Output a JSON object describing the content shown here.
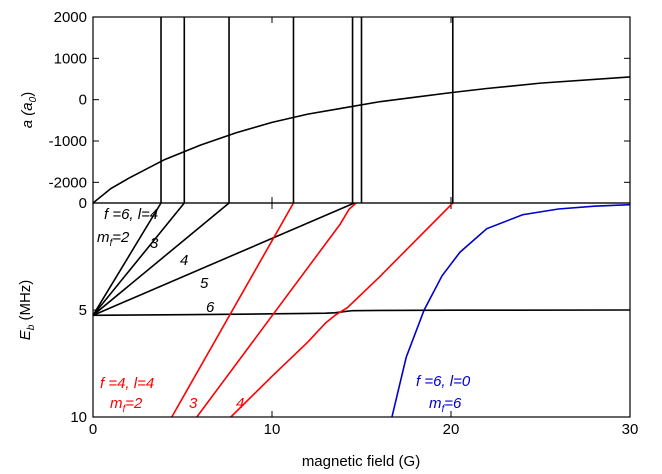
{
  "chart_data": [
    {
      "type": "line",
      "ylabel": [
        "a (a",
        "0",
        ")"
      ],
      "xlim": [
        0,
        30
      ],
      "ylim": [
        -2500,
        2000
      ],
      "yticks": [
        2000,
        1000,
        0,
        -1000,
        -2000
      ],
      "resonances": [
        3.8,
        5.1,
        7.6,
        11.2,
        14.5,
        15.0,
        20.1
      ],
      "series": [
        {
          "color": "#000000",
          "x": [
            0,
            1,
            2,
            4,
            6,
            8,
            10,
            12,
            14,
            16,
            18,
            20,
            22,
            25,
            30
          ],
          "values": [
            -2500,
            -2150,
            -1900,
            -1450,
            -1100,
            -800,
            -550,
            -350,
            -200,
            -50,
            60,
            170,
            270,
            400,
            550
          ]
        }
      ]
    },
    {
      "type": "line",
      "ylabel": [
        "E",
        "b",
        " (MHz)"
      ],
      "xlabel": "magnetic field (G)",
      "xlim": [
        0,
        30
      ],
      "ylim": [
        10,
        0
      ],
      "xticks": [
        0,
        10,
        20,
        30
      ],
      "yticks": [
        0,
        5,
        10
      ],
      "annotations": [
        {
          "color": "#000000",
          "parts": [
            "f =6, l=4"
          ]
        },
        {
          "color": "#000000",
          "parts": [
            "m",
            "f",
            "=2"
          ]
        },
        {
          "color": "#000000",
          "parts": [
            "3"
          ]
        },
        {
          "color": "#000000",
          "parts": [
            "4"
          ]
        },
        {
          "color": "#000000",
          "parts": [
            "5"
          ]
        },
        {
          "color": "#000000",
          "parts": [
            "6"
          ]
        },
        {
          "color": "#ff0000",
          "parts": [
            "f =4, l=4"
          ]
        },
        {
          "color": "#ff0000",
          "parts": [
            "m",
            "f",
            "=2"
          ]
        },
        {
          "color": "#ff0000",
          "parts": [
            "3"
          ]
        },
        {
          "color": "#ff0000",
          "parts": [
            "4"
          ]
        },
        {
          "color": "#0000cc",
          "parts": [
            "f =6, l=0"
          ]
        },
        {
          "color": "#0000cc",
          "parts": [
            "m",
            "f",
            "=6"
          ]
        }
      ],
      "series": [
        {
          "color": "#000000",
          "x": [
            0,
            3.8
          ],
          "values": [
            5.25,
            0
          ]
        },
        {
          "color": "#000000",
          "x": [
            0,
            5.1
          ],
          "values": [
            5.25,
            0
          ]
        },
        {
          "color": "#000000",
          "x": [
            0,
            7.6
          ],
          "values": [
            5.25,
            0
          ]
        },
        {
          "color": "#000000",
          "x": [
            0,
            14.6
          ],
          "values": [
            5.25,
            0
          ]
        },
        {
          "color": "#000000",
          "x": [
            0,
            5,
            10,
            12,
            13,
            13.5,
            14,
            14.5,
            16,
            20,
            30
          ],
          "values": [
            5.25,
            5.22,
            5.18,
            5.16,
            5.15,
            5.13,
            5.08,
            5.03,
            5.02,
            5.01,
            5.0
          ]
        },
        {
          "color": "#ff0000",
          "x": [
            4.4,
            11.2
          ],
          "values": [
            10,
            0
          ]
        },
        {
          "color": "#ff0000",
          "x": [
            5.8,
            13.8,
            14.3,
            14.7
          ],
          "values": [
            10,
            1.0,
            0.3,
            0
          ]
        },
        {
          "color": "#ff0000",
          "x": [
            7.7,
            10,
            12,
            13,
            13.6,
            14.2,
            16,
            18,
            20.1
          ],
          "values": [
            10,
            8.1,
            6.5,
            5.6,
            5.2,
            4.9,
            3.46,
            1.77,
            0
          ]
        },
        {
          "color": "#0000cc",
          "x": [
            16.7,
            17.5,
            18.5,
            19.5,
            20.5,
            22,
            24,
            26,
            28,
            30
          ],
          "values": [
            10,
            7.2,
            5,
            3.4,
            2.3,
            1.2,
            0.55,
            0.28,
            0.15,
            0.08
          ]
        }
      ]
    }
  ]
}
